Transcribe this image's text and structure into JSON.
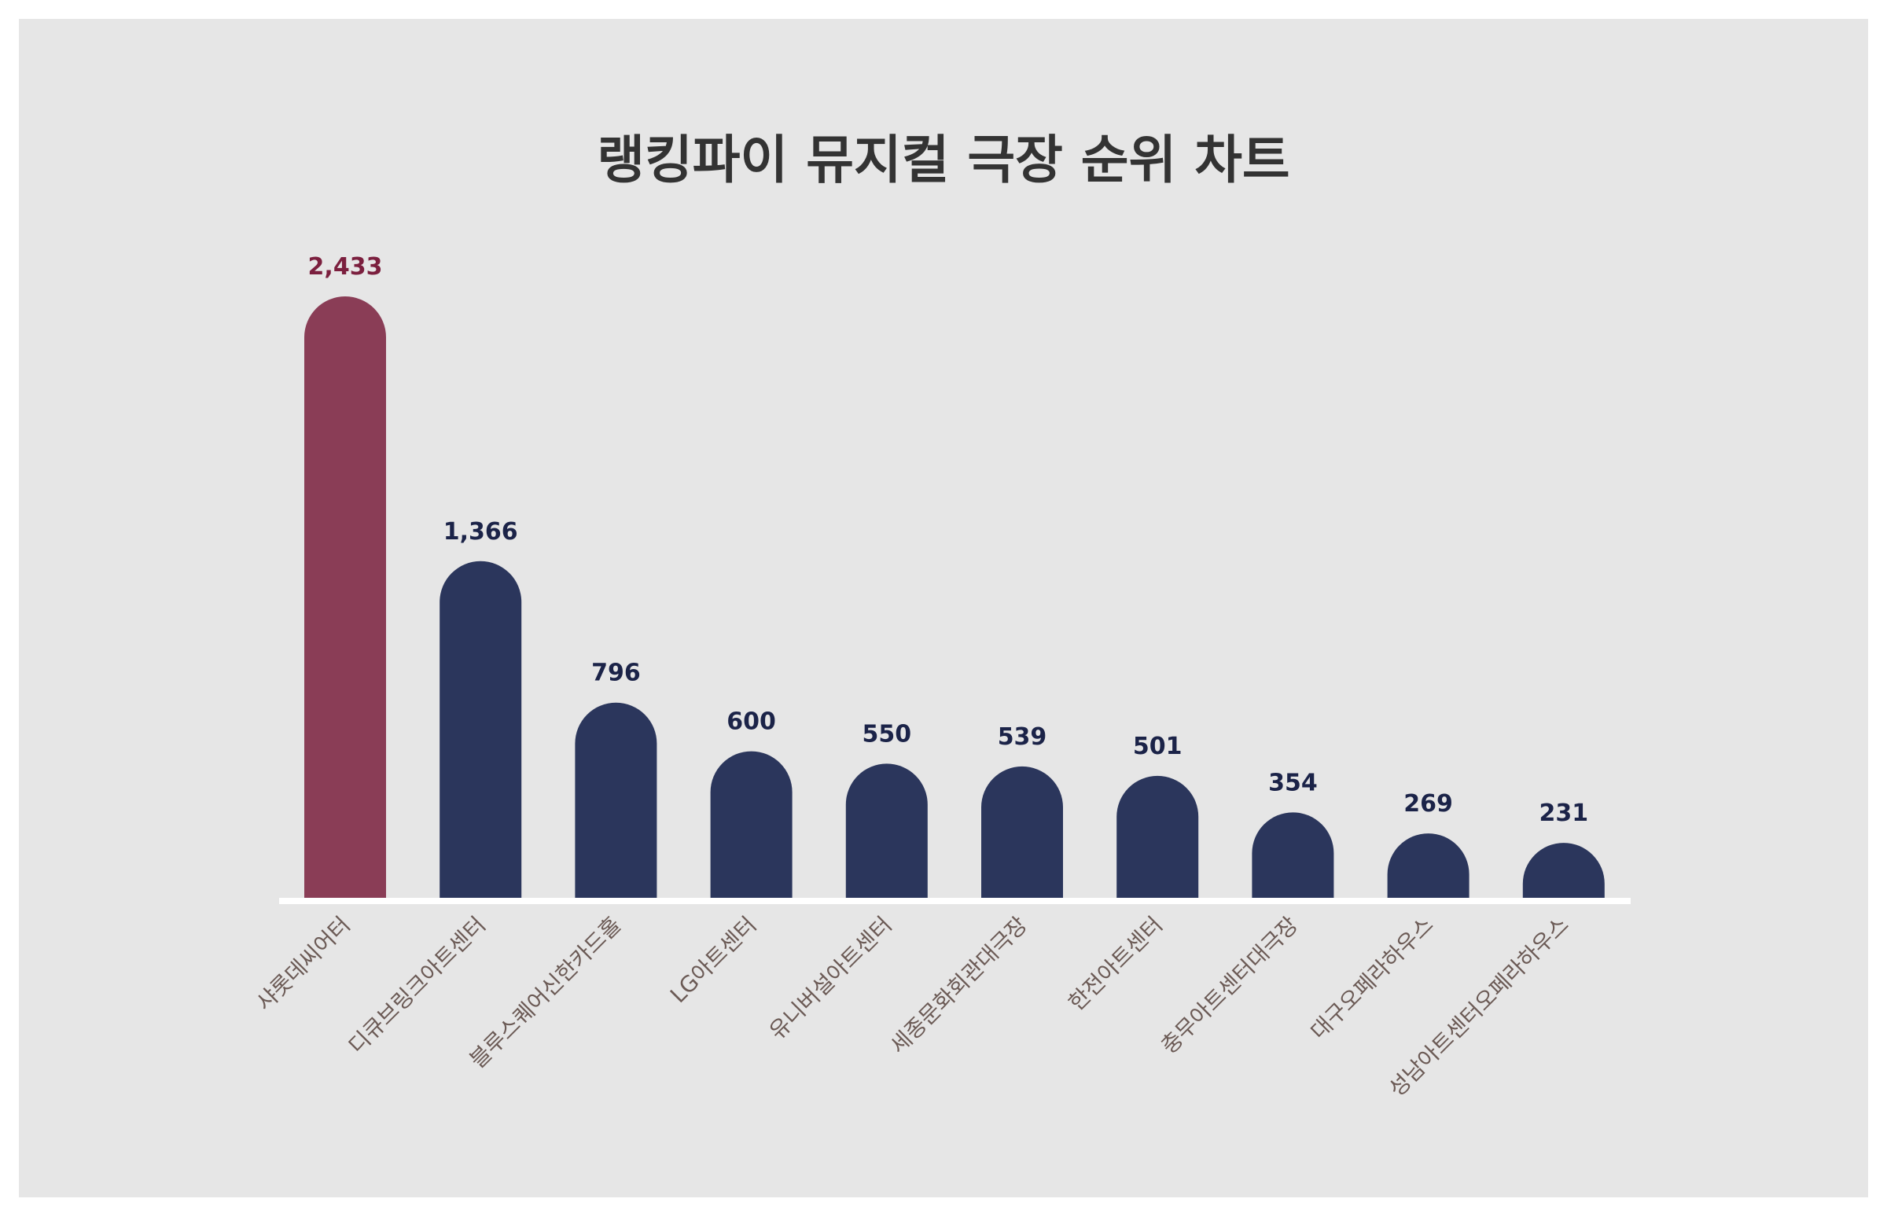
{
  "chart_data": {
    "type": "bar",
    "title": "랭킹파이 뮤지컬 극장 순위 차트",
    "categories": [
      "샤롯데씨어터",
      "디큐브링크아트센터",
      "블루스퀘어신한카드홀",
      "LG아트센터",
      "유니버설아트센터",
      "세종문화회관대극장",
      "한전아트센터",
      "충무아트센터대극장",
      "대구오페라하우스",
      "성남아트센터오페라하우스"
    ],
    "values": [
      2433,
      1366,
      796,
      600,
      550,
      539,
      501,
      354,
      269,
      231
    ],
    "value_labels": [
      "2,433",
      "1,366",
      "796",
      "600",
      "550",
      "539",
      "501",
      "354",
      "269",
      "231"
    ],
    "ylim": [
      0,
      2433
    ],
    "grid": false,
    "colors": {
      "highlight": "#8a3d56",
      "bar": "#2b365c",
      "highlight_label": "#7b1f3e",
      "label": "#1b2348",
      "tick": "#6b5a55",
      "background": "#e6e6e6",
      "axis": "#ffffff",
      "title": "#333333"
    }
  }
}
